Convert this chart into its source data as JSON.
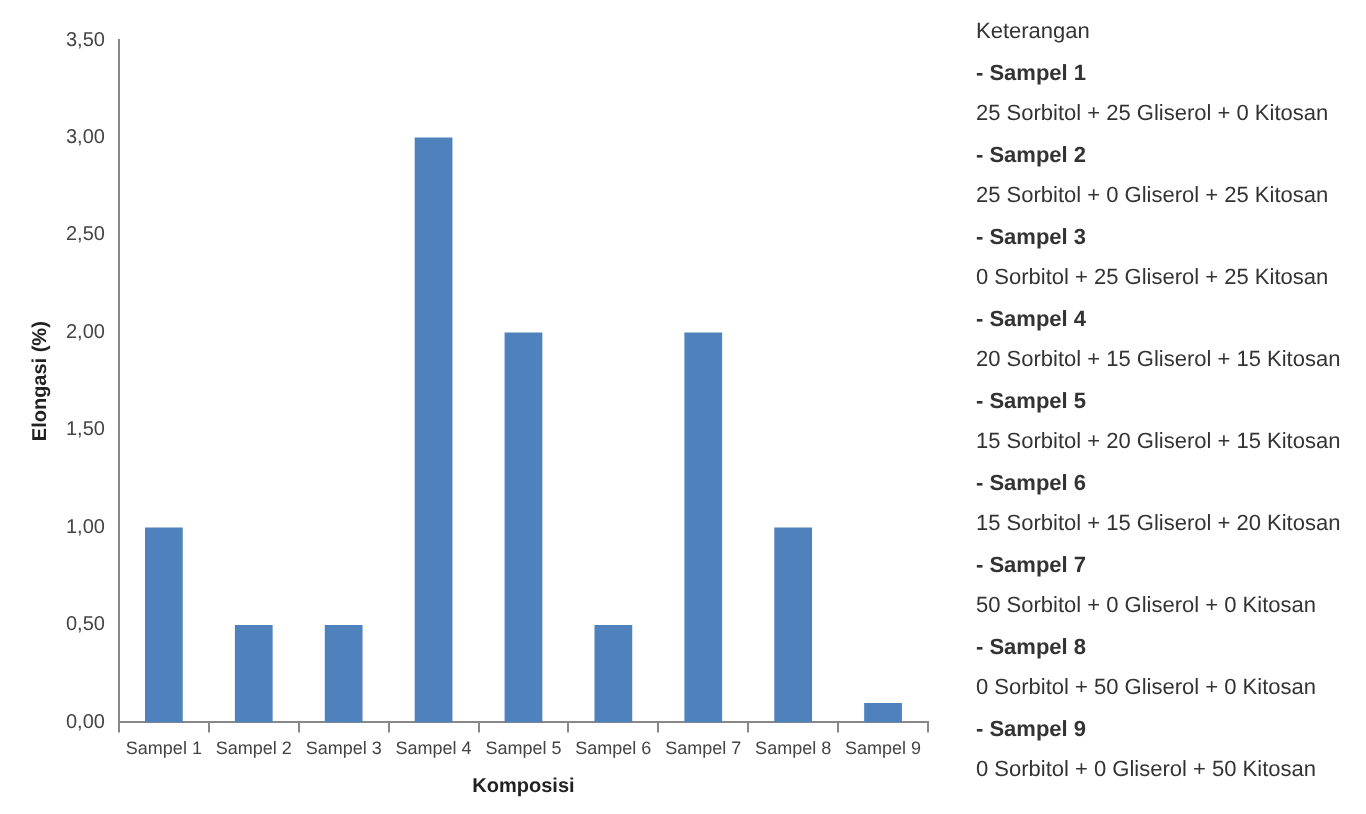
{
  "chart_data": {
    "type": "bar",
    "xlabel": "Komposisi",
    "ylabel": "Elongasi (%)",
    "categories": [
      "Sampel 1",
      "Sampel 2",
      "Sampel 3",
      "Sampel 4",
      "Sampel 5",
      "Sampel 6",
      "Sampel 7",
      "Sampel 8",
      "Sampel 9"
    ],
    "values": [
      1,
      0.5,
      0.5,
      3,
      2,
      0.5,
      2,
      1,
      0.1
    ],
    "color": "#4f81bd",
    "ylim": [
      0,
      3.5
    ],
    "yticks": [
      {
        "value": 0,
        "label": "0,00"
      },
      {
        "value": 0.5,
        "label": "0,50"
      },
      {
        "value": 1,
        "label": "1,00"
      },
      {
        "value": 1.5,
        "label": "1,50"
      },
      {
        "value": 2,
        "label": "2,00"
      },
      {
        "value": 2.5,
        "label": "2,50"
      },
      {
        "value": 3,
        "label": "3,00"
      },
      {
        "value": 3.5,
        "label": "3,50"
      }
    ],
    "grid": false,
    "legend": false,
    "annotations": [
      "Keterangan",
      "- Sampel 1",
      "25 Sorbitol + 25 Gliserol + 0 Kitosan",
      "- Sampel 2",
      "25 Sorbitol + 0 Gliserol + 25 Kitosan",
      "- Sampel 3",
      "0 Sorbitol + 25 Gliserol + 25 Kitosan",
      "- Sampel 4",
      "20 Sorbitol + 15 Gliserol + 15 Kitosan",
      "- Sampel 5",
      "15 Sorbitol + 20 Gliserol + 15 Kitosan",
      "- Sampel 6",
      "15 Sorbitol + 15 Gliserol + 20 Kitosan",
      "- Sampel 7",
      "50 Sorbitol + 0 Gliserol + 0 Kitosan",
      "- Sampel 8",
      "0 Sorbitol + 50 Gliserol + 0 Kitosan",
      "- Sampel 9",
      "0 Sorbitol + 0 Gliserol + 50 Kitosan"
    ]
  }
}
